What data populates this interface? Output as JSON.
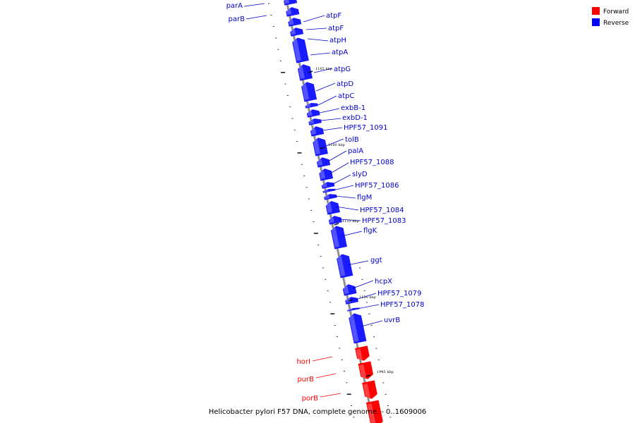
{
  "legend": {
    "items": [
      {
        "label": "Forward",
        "color": "#ff0000"
      },
      {
        "label": "Reverse",
        "color": "#0000ff"
      }
    ]
  },
  "colors": {
    "forward": "#ff0000",
    "reverse": "#1a1aff",
    "backbone": "#8a8a8a"
  },
  "footer": "Helicobacter pylori F57 DNA, complete genome. - 0..1609006",
  "scale_labels": [
    "1165 kbp",
    "1160 kbp",
    "1155 kbp",
    "1150 kbp",
    "1145 kbp"
  ],
  "genes": [
    {
      "label": "parA",
      "strand": "reverse"
    },
    {
      "label": "parB",
      "strand": "reverse"
    },
    {
      "label": "atpF",
      "strand": "reverse"
    },
    {
      "label": "atpF",
      "strand": "reverse"
    },
    {
      "label": "atpH",
      "strand": "reverse"
    },
    {
      "label": "atpA",
      "strand": "reverse"
    },
    {
      "label": "atpG",
      "strand": "reverse"
    },
    {
      "label": "atpD",
      "strand": "reverse"
    },
    {
      "label": "atpC",
      "strand": "reverse"
    },
    {
      "label": "exbB-1",
      "strand": "reverse"
    },
    {
      "label": "exbD-1",
      "strand": "reverse"
    },
    {
      "label": "HPF57_1091",
      "strand": "reverse"
    },
    {
      "label": "tolB",
      "strand": "reverse"
    },
    {
      "label": "palA",
      "strand": "reverse"
    },
    {
      "label": "HPF57_1088",
      "strand": "reverse"
    },
    {
      "label": "slyD",
      "strand": "reverse"
    },
    {
      "label": "HPF57_1086",
      "strand": "reverse"
    },
    {
      "label": "flgM",
      "strand": "reverse"
    },
    {
      "label": "HPF57_1084",
      "strand": "reverse"
    },
    {
      "label": "HPF57_1083",
      "strand": "reverse"
    },
    {
      "label": "flgK",
      "strand": "reverse"
    },
    {
      "label": "ggt",
      "strand": "reverse"
    },
    {
      "label": "hcpX",
      "strand": "reverse"
    },
    {
      "label": "HPF57_1079",
      "strand": "reverse"
    },
    {
      "label": "HPF57_1078",
      "strand": "reverse"
    },
    {
      "label": "uvrB",
      "strand": "reverse"
    },
    {
      "label": "horI",
      "strand": "forward"
    },
    {
      "label": "purB",
      "strand": "forward"
    },
    {
      "label": "porB",
      "strand": "forward"
    }
  ]
}
